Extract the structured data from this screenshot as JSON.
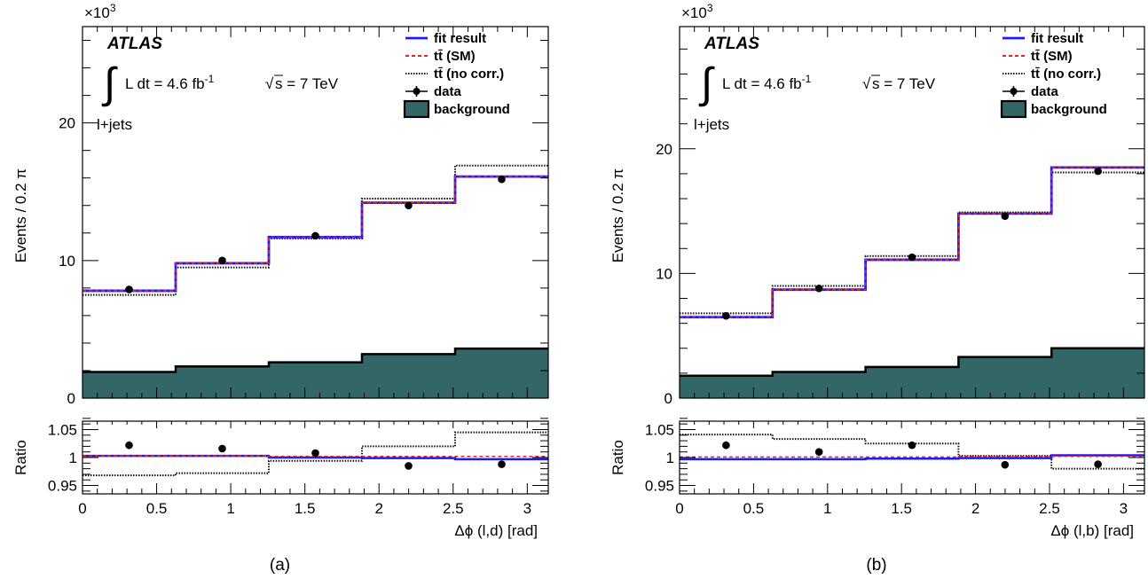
{
  "colors": {
    "fit": "#1a1aff",
    "sm": "#e8251e",
    "nocorr": "#111111",
    "data": "#000000",
    "background_fill": "#336666",
    "background_edge": "#000000"
  },
  "common": {
    "experiment": "ATLAS",
    "lumi_prefix": "L dt = 4.6 fb",
    "lumi_exp": "-1",
    "energy_rest": "s = 7 TeV",
    "channel": "l+jets",
    "exponent_base": "×10",
    "exponent_power": "3",
    "ylabel": "Events / 0.2 π",
    "ratio_label": "Ratio",
    "legend": [
      "fit result",
      "tt̄ (SM)",
      "tt̄ (no corr.)",
      "data",
      "background"
    ],
    "x_ticks": [
      "0",
      "0.5",
      "1",
      "1.5",
      "2",
      "2.5",
      "3"
    ],
    "ratio_ticks": [
      "1.05",
      "1",
      "0.95"
    ]
  },
  "chart_data": [
    {
      "type": "line",
      "panel_label": "(a)",
      "xlabel": "Δϕ (l,d) [rad]",
      "xlim": [
        0,
        3.1416
      ],
      "bin_edges": [
        0,
        0.6283,
        1.2566,
        1.885,
        2.5133,
        3.1416
      ],
      "ylim": [
        0,
        27
      ],
      "y_ticks": [
        "0",
        "10",
        "20"
      ],
      "y_unit_scale": "×10^3",
      "series": [
        {
          "name": "fit result",
          "style": "step",
          "values": [
            7.8,
            9.8,
            11.7,
            14.2,
            16.1
          ]
        },
        {
          "name": "tt̄ (SM)",
          "style": "step",
          "values": [
            7.8,
            9.8,
            11.7,
            14.2,
            16.1
          ]
        },
        {
          "name": "tt̄ (no corr.)",
          "style": "step",
          "values": [
            7.5,
            9.5,
            11.6,
            14.5,
            16.9
          ]
        },
        {
          "name": "data",
          "style": "points",
          "values": [
            7.9,
            10.0,
            11.8,
            14.0,
            15.9
          ]
        },
        {
          "name": "background",
          "style": "filled-step",
          "values": [
            1.9,
            2.3,
            2.6,
            3.2,
            3.6
          ]
        }
      ],
      "ratio": {
        "ylim": [
          0.935,
          1.065
        ],
        "fit": [
          1.003,
          1.003,
          1.0,
          0.999,
          0.997
        ],
        "sm": [
          1.003,
          1.003,
          1.002,
          1.002,
          1.002
        ],
        "nocorr": [
          0.968,
          0.972,
          0.994,
          1.02,
          1.045
        ],
        "data": [
          1.022,
          1.016,
          1.008,
          0.985,
          0.988
        ],
        "data_err": [
          0.007,
          0.006,
          0.005,
          0.005,
          0.004
        ]
      }
    },
    {
      "type": "line",
      "panel_label": "(b)",
      "xlabel": "Δϕ (l,b) [rad]",
      "xlim": [
        0,
        3.1416
      ],
      "bin_edges": [
        0,
        0.6283,
        1.2566,
        1.885,
        2.5133,
        3.1416
      ],
      "ylim": [
        0,
        29.8
      ],
      "y_ticks": [
        "0",
        "10",
        "20"
      ],
      "y_unit_scale": "×10^3",
      "series": [
        {
          "name": "fit result",
          "style": "step",
          "values": [
            6.5,
            8.7,
            11.1,
            14.8,
            18.5
          ]
        },
        {
          "name": "tt̄ (SM)",
          "style": "step",
          "values": [
            6.5,
            8.7,
            11.1,
            14.8,
            18.5
          ]
        },
        {
          "name": "tt̄ (no corr.)",
          "style": "step",
          "values": [
            6.8,
            9.0,
            11.4,
            14.9,
            18.1
          ]
        },
        {
          "name": "data",
          "style": "points",
          "values": [
            6.6,
            8.8,
            11.3,
            14.6,
            18.2
          ]
        },
        {
          "name": "background",
          "style": "filled-step",
          "values": [
            1.8,
            2.1,
            2.5,
            3.3,
            4.0
          ]
        }
      ],
      "ratio": {
        "ylim": [
          0.935,
          1.065
        ],
        "fit": [
          0.997,
          0.997,
          0.998,
          0.999,
          1.004
        ],
        "sm": [
          1.001,
          1.001,
          1.001,
          1.002,
          1.002
        ],
        "nocorr": [
          1.041,
          1.033,
          1.025,
          1.003,
          0.98
        ],
        "data": [
          1.022,
          1.01,
          1.022,
          0.987,
          0.988
        ],
        "data_err": [
          0.007,
          0.006,
          0.005,
          0.004,
          0.004
        ]
      }
    }
  ]
}
